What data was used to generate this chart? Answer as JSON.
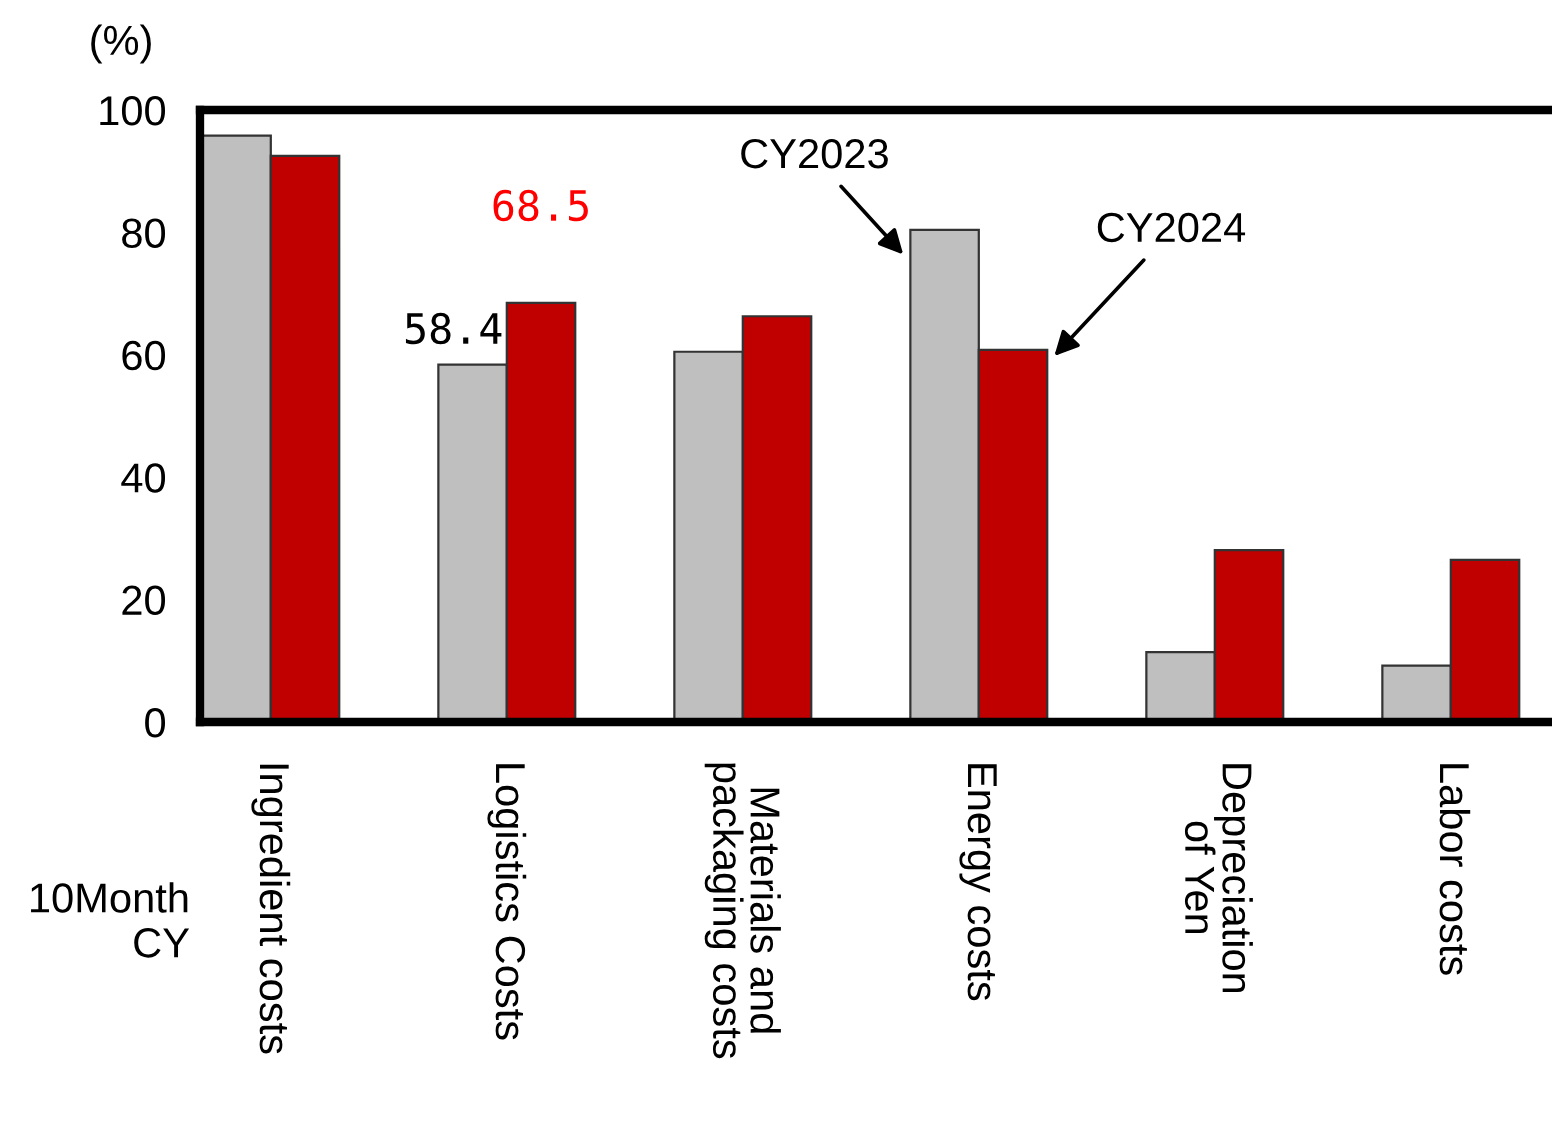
{
  "chart_data": {
    "type": "bar",
    "ylabel": "(%)",
    "categories": [
      "Ingredient costs",
      "Logistics Costs",
      "Materials and\npackaging costs",
      "Energy costs",
      "Depreciation\nof Yen",
      "Labor costs"
    ],
    "series": [
      {
        "name": "CY2023",
        "color": "#bfbfbf",
        "values": [
          95.8,
          58.4,
          60.5,
          80.4,
          11.4,
          9.2
        ],
        "value_labels": [
          null,
          "58.4",
          null,
          null,
          null,
          null
        ]
      },
      {
        "name": "CY2024",
        "color": "#c00000",
        "values": [
          92.5,
          68.5,
          66.3,
          60.8,
          28.1,
          26.5
        ],
        "value_labels": [
          null,
          "68.5",
          null,
          null,
          null,
          null
        ]
      }
    ],
    "ylim": [
      0,
      100
    ],
    "yticks": [
      0,
      20,
      40,
      60,
      80,
      100
    ],
    "grid": false,
    "legend": false,
    "annotations": [
      "10Month\nCY"
    ]
  }
}
